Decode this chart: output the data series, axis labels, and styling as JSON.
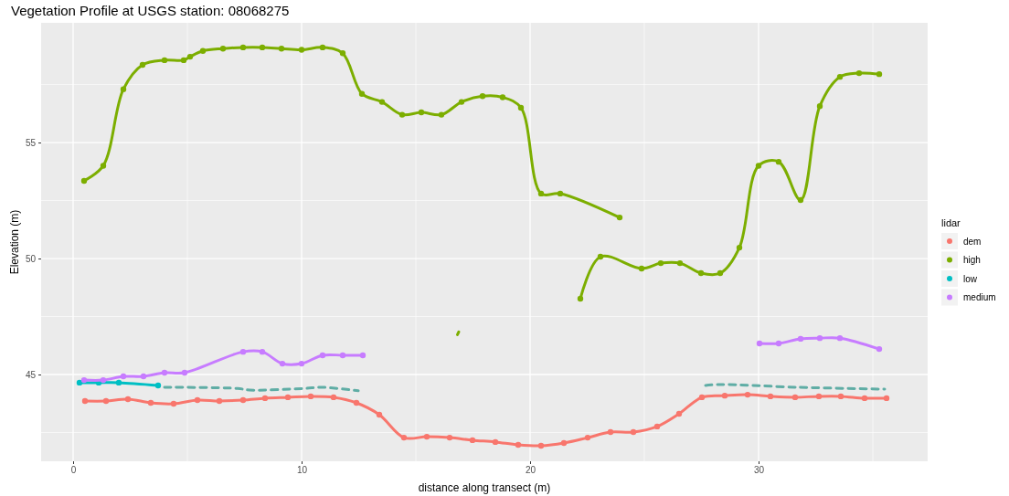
{
  "chart_data": {
    "type": "line",
    "title": "Vegetation Profile at USGS station: 08068275",
    "xlabel": "distance along transect (m)",
    "ylabel": "Elevation (m)",
    "legend_title": "lidar",
    "legend": "right",
    "grid": true,
    "marker": "circle",
    "xlim": [
      -1.4,
      37.4
    ],
    "xticks": [
      0,
      10,
      20,
      30
    ],
    "ylim": [
      41.26,
      60.16
    ],
    "yticks": [
      45,
      50,
      55
    ],
    "series": [
      {
        "name": "dem",
        "color": "#f8766d",
        "x": [
          0.52,
          1.44,
          2.4,
          3.4,
          4.4,
          5.44,
          6.4,
          7.44,
          8.4,
          9.4,
          10.4,
          11.4,
          12.4,
          13.4,
          14.48,
          15.48,
          16.48,
          17.48,
          18.48,
          19.48,
          20.48,
          21.48,
          22.52,
          23.52,
          24.52,
          25.56,
          26.52,
          27.52,
          28.52,
          29.52,
          30.52,
          31.6,
          32.64,
          33.6,
          34.64,
          35.6
        ],
        "values": [
          43.86,
          43.86,
          43.94,
          43.78,
          43.74,
          43.9,
          43.86,
          43.9,
          43.98,
          44.02,
          44.06,
          44.02,
          43.78,
          43.27,
          42.28,
          42.32,
          42.28,
          42.17,
          42.09,
          41.97,
          41.93,
          42.05,
          42.28,
          42.52,
          42.52,
          42.76,
          43.31,
          44.02,
          44.09,
          44.13,
          44.06,
          44.02,
          44.06,
          44.06,
          43.98,
          43.98
        ]
      },
      {
        "name": "high",
        "color": "#7cae00",
        "x": [
          0.48,
          1.32,
          2.2,
          3.04,
          4.0,
          4.84,
          5.12,
          5.68,
          6.56,
          7.44,
          8.28,
          9.12,
          10.0,
          10.92,
          11.8,
          12.64,
          13.52,
          14.4,
          15.24,
          16.12,
          17.0,
          17.92,
          18.8,
          19.6,
          20.48,
          21.32,
          23.92,
          23.0,
          22.2,
          23.08,
          24.88,
          25.72,
          26.56,
          27.48,
          28.32,
          29.16,
          30.0,
          30.88,
          31.84,
          32.68,
          33.56,
          34.4,
          35.28
        ],
        "values": [
          53.35,
          54.0,
          57.3,
          58.35,
          58.55,
          58.55,
          58.7,
          58.95,
          59.05,
          59.1,
          59.1,
          59.05,
          59.0,
          59.1,
          58.85,
          57.1,
          56.75,
          56.2,
          56.3,
          56.2,
          56.75,
          57.0,
          56.95,
          56.5,
          52.8,
          52.8,
          51.77,
          null,
          48.27,
          50.08,
          49.57,
          49.8,
          49.8,
          49.37,
          49.37,
          50.47,
          54.0,
          54.17,
          52.52,
          56.57,
          57.83,
          57.99,
          57.95
        ]
      },
      {
        "name": "low",
        "color": "#00bfc4",
        "x": [
          0.28,
          1.12,
          2.0,
          3.72
        ],
        "values": [
          44.65,
          44.65,
          44.65,
          44.53
        ]
      },
      {
        "name": "medium",
        "color": "#c77cff",
        "x": [
          0.48,
          1.32,
          2.2,
          3.08,
          4.0,
          4.88,
          7.44,
          8.28,
          9.16,
          10.0,
          10.92,
          11.8,
          12.68,
          20.0,
          30.04,
          30.88,
          31.84,
          32.68,
          33.56,
          35.28
        ],
        "values": [
          44.76,
          44.76,
          44.92,
          44.92,
          45.08,
          45.08,
          45.98,
          45.98,
          45.47,
          45.47,
          45.83,
          45.83,
          45.83,
          null,
          46.34,
          46.34,
          46.54,
          46.57,
          46.57,
          46.1
        ]
      },
      {
        "color": "#5fada5",
        "line_style": "dashed",
        "marker": "none",
        "x": [
          4.0,
          7.2,
          7.72,
          10.12,
          10.88,
          12.48,
          20.0,
          27.68,
          28.32,
          31.72,
          35.52
        ],
        "values": [
          44.45,
          44.4,
          44.33,
          44.4,
          44.45,
          44.3,
          null,
          44.53,
          44.57,
          44.45,
          44.37
        ]
      },
      {
        "color": "#7cae00",
        "marker": "none",
        "x": [
          16.82,
          16.88
        ],
        "values": [
          46.72,
          46.84
        ]
      }
    ]
  }
}
